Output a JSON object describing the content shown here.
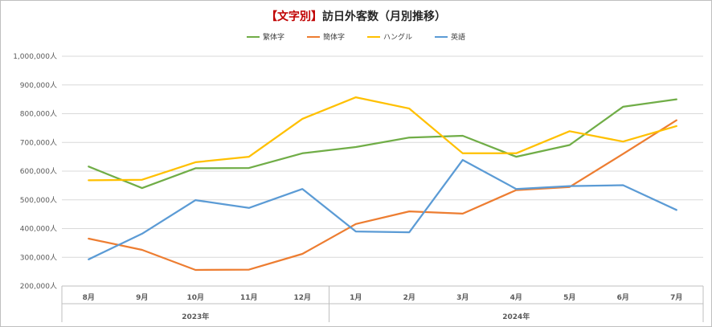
{
  "title_accent": "【文字別】",
  "title_main": "訪日外客数（月別推移）",
  "chart_data": {
    "type": "line",
    "categories": [
      "8月",
      "9月",
      "10月",
      "11月",
      "12月",
      "1月",
      "2月",
      "3月",
      "4月",
      "5月",
      "6月",
      "7月"
    ],
    "groups": [
      {
        "label": "2023年",
        "count": 5
      },
      {
        "label": "2024年",
        "count": 7
      }
    ],
    "ylim": [
      200000,
      1000000
    ],
    "yticks": [
      "200,000人",
      "300,000人",
      "400,000人",
      "500,000人",
      "600,000人",
      "700,000人",
      "800,000人",
      "900,000人",
      "1,000,000人"
    ],
    "grid": true,
    "legend_position": "top",
    "series": [
      {
        "name": "繁体字",
        "color": "#70ad47",
        "values": [
          616000,
          541000,
          610000,
          611000,
          662000,
          684000,
          717000,
          723000,
          650000,
          691000,
          824000,
          850000
        ]
      },
      {
        "name": "簡体字",
        "color": "#ed7d31",
        "values": [
          365000,
          326000,
          256000,
          257000,
          312000,
          416000,
          460000,
          452000,
          534000,
          545000,
          660000,
          777000
        ]
      },
      {
        "name": "ハングル",
        "color": "#ffc000",
        "values": [
          568000,
          570000,
          631000,
          650000,
          782000,
          857000,
          818000,
          662000,
          662000,
          739000,
          703000,
          757000
        ]
      },
      {
        "name": "英語",
        "color": "#5b9bd5",
        "values": [
          293000,
          382000,
          499000,
          472000,
          538000,
          390000,
          387000,
          639000,
          538000,
          548000,
          551000,
          465000
        ]
      }
    ]
  }
}
